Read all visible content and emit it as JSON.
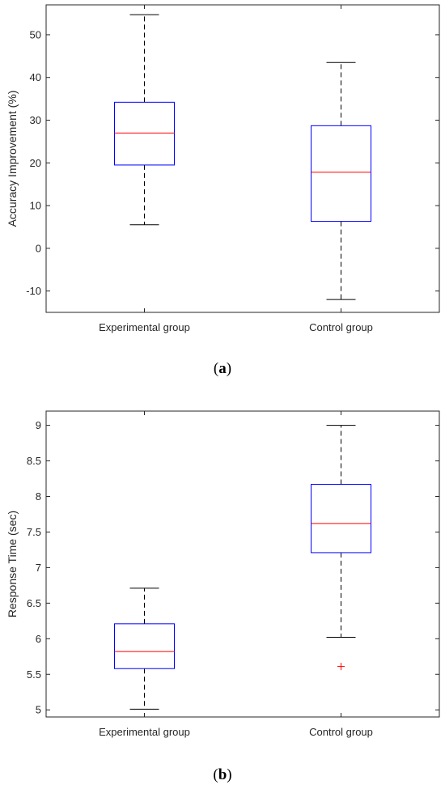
{
  "chart_data": [
    {
      "type": "box",
      "panel_label": "a",
      "ylabel": "Accuracy Improvement (%)",
      "categories": [
        "Experimental group",
        "Control group"
      ],
      "ylim": [
        -15,
        57
      ],
      "yticks": [
        -10,
        0,
        10,
        20,
        30,
        40,
        50
      ],
      "boxes": [
        {
          "category": "Experimental group",
          "whisker_low": 5.5,
          "q1": 19.5,
          "median": 27.0,
          "q3": 34.2,
          "whisker_high": 54.7,
          "outliers": []
        },
        {
          "category": "Control group",
          "whisker_low": -12.0,
          "q1": 6.3,
          "median": 17.8,
          "q3": 28.7,
          "whisker_high": 43.5,
          "outliers": []
        }
      ]
    },
    {
      "type": "box",
      "panel_label": "b",
      "ylabel": "Response Time (sec)",
      "categories": [
        "Experimental group",
        "Control group"
      ],
      "ylim": [
        4.9,
        9.2
      ],
      "yticks": [
        5,
        5.5,
        6,
        6.5,
        7,
        7.5,
        8,
        8.5,
        9
      ],
      "boxes": [
        {
          "category": "Experimental group",
          "whisker_low": 5.01,
          "q1": 5.58,
          "median": 5.82,
          "q3": 6.21,
          "whisker_high": 6.71,
          "outliers": []
        },
        {
          "category": "Control group",
          "whisker_low": 6.02,
          "q1": 7.21,
          "median": 7.62,
          "q3": 8.17,
          "whisker_high": 9.0,
          "outliers": [
            5.61
          ]
        }
      ]
    }
  ],
  "style": {
    "box_color": "#0000ff",
    "median_color": "#ff0000",
    "whisker_color": "#000000",
    "outlier_color": "#ff0000",
    "axis_color": "#262626"
  }
}
